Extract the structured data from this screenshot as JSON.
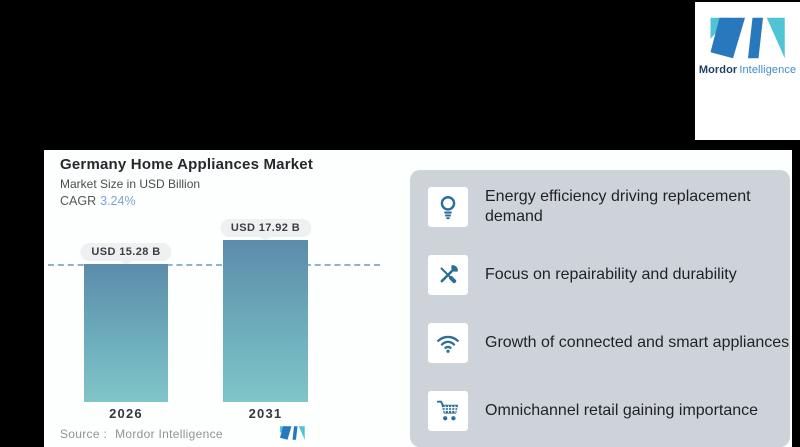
{
  "brand": {
    "name_bold": "Mordor",
    "name_light": "Intelligence"
  },
  "chart": {
    "title": "Germany Home Appliances Market",
    "subtitle": "Market Size in USD Billion",
    "cagr_label": "CAGR",
    "cagr_value": "3.24%",
    "source_label": "Source :",
    "source_value": "Mordor Intelligence"
  },
  "chart_data": {
    "type": "bar",
    "title": "Germany Home Appliances Market",
    "subtitle": "Market Size in USD Billion",
    "unit": "USD Billion",
    "cagr_percent": 3.24,
    "categories": [
      "2026",
      "2031"
    ],
    "values": [
      15.28,
      17.92
    ],
    "value_labels": [
      "USD 15.28 B",
      "USD 17.92 B"
    ],
    "ylim": [
      0,
      20
    ],
    "reference_line": 15.28,
    "grid": false,
    "legend": false,
    "source": "Mordor Intelligence"
  },
  "highlights": {
    "items": [
      {
        "icon": "lightbulb-icon",
        "text": "Energy efficiency driving replacement demand"
      },
      {
        "icon": "tools-icon",
        "text": "Focus on repairability and durability"
      },
      {
        "icon": "wifi-icon",
        "text": "Growth of connected and smart appliances"
      },
      {
        "icon": "shopping-cart-icon",
        "text": "Omnichannel retail gaining importance"
      }
    ]
  },
  "colors": {
    "accent_blue": "#77A7D6",
    "bar_gradient_top": "#5B8CAA",
    "bar_gradient_bottom": "#80C5C8",
    "panel_bg": "#CDD3D9",
    "icon_blue": "#2D6E94",
    "dashed_line": "#8FB2CD",
    "logo_blue": "#2878BD",
    "logo_teal": "#4FC4D4",
    "background": "#000000"
  }
}
